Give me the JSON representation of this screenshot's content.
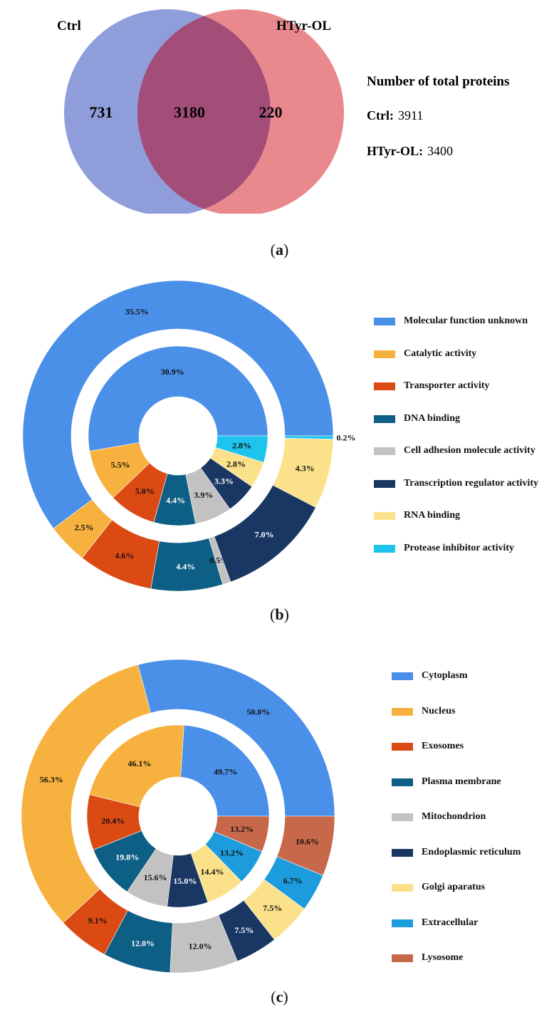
{
  "chart_data": [
    {
      "type": "venn",
      "sets": [
        {
          "name": "Ctrl",
          "only": 731,
          "color": "#6f83cf"
        },
        {
          "name": "HTyr-OL",
          "only": 220,
          "color": "#e36c70"
        }
      ],
      "intersection": 3180,
      "summary": {
        "title": "Number of total proteins",
        "rows": [
          {
            "label": "Ctrl:",
            "value": "3911"
          },
          {
            "label": "HTyr-OL:",
            "value": "3400"
          }
        ]
      },
      "panel_label": {
        "open": "(",
        "letter": "a",
        "close": ")"
      }
    },
    {
      "type": "pie",
      "variant": "nested-donut",
      "categories": [
        "Molecular function unknown",
        "Catalytic activity",
        "Transporter activity",
        "DNA binding",
        "Cell adhesion molecule activity",
        "Transcription regulator activity",
        "RNA binding",
        "Protease inhibitor activity"
      ],
      "colors": [
        "#4a8fe8",
        "#f7b13e",
        "#dc4a13",
        "#0e5f86",
        "#c2c2c2",
        "#1a3764",
        "#fbe28a",
        "#1fc4ec"
      ],
      "series": [
        {
          "ring": "outer",
          "values": [
            35.5,
            2.5,
            4.6,
            4.4,
            0.5,
            7.0,
            4.3,
            0.2
          ],
          "labels": [
            "35.5%",
            "2.5%",
            "4.6%",
            "4.4%",
            "0.5%",
            "7.0%",
            "4.3%",
            "0.2%"
          ]
        },
        {
          "ring": "inner",
          "values": [
            30.9,
            5.5,
            5.0,
            4.4,
            3.9,
            3.3,
            2.8,
            2.8
          ],
          "labels": [
            "30.9%",
            "5.5%",
            "5.0%",
            "4.4%",
            "3.9%",
            "3.3%",
            "2.8%",
            "2.8%"
          ]
        }
      ],
      "legend_position": "right",
      "panel_label": {
        "open": "(",
        "letter": "b",
        "close": ")"
      }
    },
    {
      "type": "pie",
      "variant": "nested-donut",
      "categories": [
        "Cytoplasm",
        "Nucleus",
        "Exosomes",
        "Plasma membrane",
        "Mitochondrion",
        "Endoplasmic reticulum",
        "Golgi aparatus",
        "Extracellular",
        "Lysosome"
      ],
      "colors": [
        "#4a8fe8",
        "#f7b13e",
        "#dc4a13",
        "#0e5f86",
        "#c2c2c2",
        "#1a3764",
        "#fbe28a",
        "#1c9cdc",
        "#c8684a"
      ],
      "series": [
        {
          "ring": "outer",
          "values": [
            50.0,
            56.3,
            9.1,
            12.0,
            12.0,
            7.5,
            7.5,
            6.7,
            10.6
          ],
          "labels": [
            "50.0%",
            "56.3%",
            "9.1%",
            "12.0%",
            "12.0%",
            "7.5%",
            "7.5%",
            "6.7%",
            "10.6%"
          ]
        },
        {
          "ring": "inner",
          "values": [
            49.7,
            46.1,
            20.4,
            19.8,
            15.6,
            15.0,
            14.4,
            13.2,
            13.2
          ],
          "labels": [
            "49.7%",
            "46.1%",
            "20.4%",
            "19.8%",
            "15.6%",
            "15.0%",
            "14.4%",
            "13.2%",
            "13.2%"
          ]
        }
      ],
      "legend_position": "right",
      "panel_label": {
        "open": "(",
        "letter": "c",
        "close": ")"
      }
    }
  ]
}
